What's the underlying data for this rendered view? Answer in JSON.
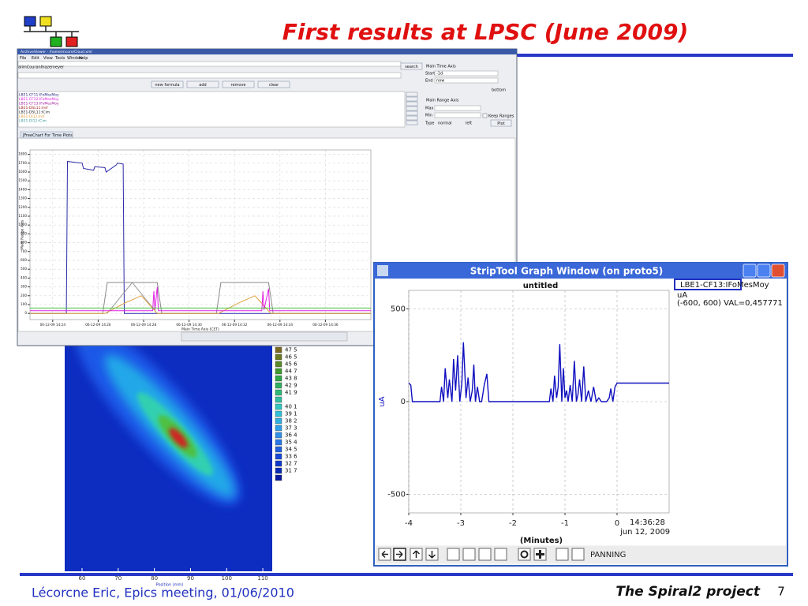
{
  "slide": {
    "title": "First results at LPSC (June 2009)",
    "footer_left": "Lécorcne Eric, Epics meeting, 01/06/2010",
    "footer_right": "The Spiral2 project",
    "page_number": "7"
  },
  "archive_viewer": {
    "window_title": "ArchiveViewer - /home/mcore/Cloud.xml",
    "menu": [
      "File",
      "Edit",
      "View",
      "Tools",
      "Window",
      "Help"
    ],
    "pv_field": "alimCouranIhazemeyer",
    "search": "search",
    "buttons": [
      "new formula",
      "add",
      "remove",
      "clear"
    ],
    "time_axis": "Main Time Axis",
    "start_label": "Start",
    "start": "-1d",
    "end_label": "End",
    "end": "now",
    "bottom": "bottom",
    "range_axis": "Main Range Axis",
    "max_label": "Max",
    "min_label": "Min",
    "keep_ranges": "Keep Ranges",
    "type_label": "Type",
    "type": "normal",
    "side": "left",
    "plot": "Plot",
    "tab": "JFreeChart For Time Plots",
    "pv_list": [
      {
        "name": "LBE1-CF11:IFoMesMoy",
        "color": "#202080"
      },
      {
        "name": "LBE1-CF12:IFoMesMoy",
        "color": "#e020e0"
      },
      {
        "name": "LBE1-CF13:IFoMesMoy",
        "color": "#a020a0"
      },
      {
        "name": "LBE1-DSL11:Iref",
        "color": "#a02020"
      },
      {
        "name": "LBE1-DSL11:ICim",
        "color": "#202020"
      },
      {
        "name": "LBE1-DI12:Iref",
        "color": "#e0a040"
      },
      {
        "name": "LBE1-DI12:ICim",
        "color": "#40a0a0"
      }
    ]
  },
  "chart_data": [
    {
      "type": "line",
      "x_label": "Main Time Axis (CET)",
      "y_label": "Main Range Axis",
      "xlim": [
        23,
        38
      ],
      "xticks": [
        {
          "value": 24,
          "label": "06-12-09 14:24"
        },
        {
          "value": 26,
          "label": "06-12-09 14:26"
        },
        {
          "value": 28,
          "label": "06-12-09 14:28"
        },
        {
          "value": 30,
          "label": "06-12-09 14:30"
        },
        {
          "value": 32,
          "label": "06-12-09 14:32"
        },
        {
          "value": 34,
          "label": "06-12-09 14:34"
        },
        {
          "value": 36,
          "label": "06-12-09 14:36"
        }
      ],
      "ylim": [
        -70,
        1850
      ],
      "yticks": [
        0,
        100,
        200,
        300,
        400,
        500,
        600,
        700,
        800,
        900,
        1000,
        1100,
        1200,
        1300,
        1400,
        1500,
        1600,
        1700,
        1800
      ],
      "grid": true,
      "series": [
        {
          "color": "#2a2aa8",
          "x": [
            23,
            24.6,
            24.65,
            25.3,
            25.35,
            25.8,
            25.85,
            26.3,
            26.35,
            26.8,
            26.85,
            27.1,
            27.15,
            38
          ],
          "values": [
            0,
            0,
            1720,
            1700,
            1640,
            1620,
            1660,
            1650,
            1600,
            1680,
            1700,
            1690,
            0,
            0
          ]
        },
        {
          "color": "#888888",
          "x": [
            23,
            26.2,
            26.4,
            28.6,
            28.8,
            31.2,
            31.4,
            33.5,
            33.7,
            38
          ],
          "values": [
            0,
            0,
            350,
            350,
            0,
            0,
            350,
            350,
            0,
            0
          ]
        },
        {
          "color": "#999999",
          "x": [
            26.4,
            27.5,
            28.6
          ],
          "values": [
            0,
            350,
            0
          ]
        },
        {
          "color": "#e0a040",
          "x": [
            23,
            26.3,
            27.2,
            27.9,
            28.6,
            31.3,
            32.2,
            32.9,
            33.6,
            38
          ],
          "values": [
            0,
            0,
            120,
            200,
            0,
            0,
            120,
            200,
            0,
            0
          ]
        },
        {
          "color": "#e020e0",
          "x": [
            23,
            28.4,
            28.45,
            28.5,
            28.6,
            28.65,
            28.8,
            33.2,
            33.25,
            33.3,
            33.5,
            33.55,
            33.7,
            38
          ],
          "values": [
            30,
            30,
            250,
            40,
            300,
            30,
            30,
            30,
            250,
            40,
            280,
            30,
            30,
            30
          ]
        },
        {
          "color": "#40c040",
          "x": [
            23,
            38
          ],
          "values": [
            60,
            60
          ]
        }
      ]
    },
    {
      "type": "line",
      "title": "untitled",
      "y_label": "uA",
      "x_label": "(Minutes)",
      "xlim": [
        -4,
        1
      ],
      "xticks": [
        -4,
        -3,
        -2,
        -1,
        0
      ],
      "ylim": [
        -600,
        600
      ],
      "yticks": [
        500,
        0,
        -500
      ],
      "grid": true,
      "series": [
        {
          "name": "LBE1-CF13:IFoMesMoy",
          "color": "#1010c0",
          "x": [
            -4,
            -3.96,
            -3.93,
            -3.4,
            -3.37,
            -3.33,
            -3.3,
            -3.25,
            -3.22,
            -3.17,
            -3.14,
            -3.1,
            -3.06,
            -3.02,
            -2.98,
            -2.95,
            -2.9,
            -2.86,
            -2.82,
            -2.78,
            -2.75,
            -2.72,
            -2.68,
            -2.64,
            -2.6,
            -2.55,
            -2.5,
            -2.46,
            -2.42,
            -2.38,
            -1.3,
            -1.27,
            -1.23,
            -1.2,
            -1.16,
            -1.13,
            -1.1,
            -1.06,
            -1.03,
            -1.0,
            -0.97,
            -0.94,
            -0.9,
            -0.86,
            -0.82,
            -0.78,
            -0.75,
            -0.72,
            -0.68,
            -0.64,
            -0.6,
            -0.55,
            -0.5,
            -0.45,
            -0.4,
            -0.35,
            -0.3,
            -0.2,
            -0.15,
            -0.12,
            -0.08,
            -0.04,
            0,
            1
          ],
          "values": [
            100,
            90,
            0,
            0,
            80,
            0,
            180,
            20,
            120,
            0,
            230,
            60,
            250,
            0,
            100,
            320,
            20,
            130,
            0,
            60,
            200,
            0,
            80,
            0,
            0,
            90,
            150,
            0,
            0,
            0,
            0,
            70,
            0,
            140,
            20,
            80,
            310,
            0,
            180,
            20,
            60,
            0,
            90,
            0,
            220,
            0,
            40,
            120,
            0,
            190,
            0,
            60,
            0,
            80,
            0,
            20,
            0,
            0,
            20,
            70,
            0,
            80,
            100,
            100
          ]
        }
      ],
      "legend": "LBE1-CF13:IFoMesMoy",
      "units": "uA",
      "range_text": "(-600, 600) VAL=0,457771",
      "time": "14:36:28",
      "date": "jun 12, 2009"
    }
  ],
  "strip_window": {
    "window_title": "StripTool Graph Window (on proto5)",
    "mode": "PANNING"
  },
  "image_panel": {
    "x_label": "Position (mm)",
    "xlim": [
      55.2,
      112.6
    ],
    "xticks": [
      60,
      70,
      80,
      90,
      100,
      110
    ],
    "colorbar": [
      {
        "label": "47 5",
        "color": "#7a6a20"
      },
      {
        "label": "46 5",
        "color": "#6a7a20"
      },
      {
        "label": "45 6",
        "color": "#5a8a28"
      },
      {
        "label": "44 7",
        "color": "#409a30"
      },
      {
        "label": "43 8",
        "color": "#30a848"
      },
      {
        "label": "42 9",
        "color": "#30b060"
      },
      {
        "label": "41 9",
        "color": "#30b878"
      },
      {
        "color": "#30c0a0"
      },
      {
        "label": "40 1",
        "color": "#30c8c0"
      },
      {
        "label": "39 1",
        "color": "#30c0d8"
      },
      {
        "label": "38 2",
        "color": "#30b0e0"
      },
      {
        "label": "37 3",
        "color": "#30a0e8"
      },
      {
        "label": "36 4",
        "color": "#3090e8"
      },
      {
        "label": "35 4",
        "color": "#2878e8"
      },
      {
        "label": "34 5",
        "color": "#2060e0"
      },
      {
        "label": "33 6",
        "color": "#1848d8"
      },
      {
        "label": "32 7",
        "color": "#1038c8"
      },
      {
        "label": "31 7",
        "color": "#0828b8"
      },
      {
        "color": "#0818a0"
      }
    ]
  }
}
